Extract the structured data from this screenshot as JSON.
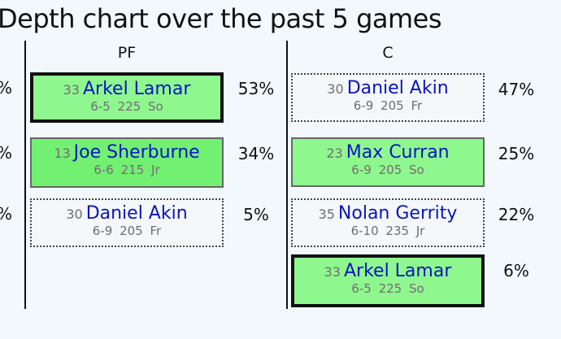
{
  "title": "Depth chart over the past 5 games",
  "left_partial_pcts": [
    "%",
    "%",
    "%"
  ],
  "columns": [
    {
      "position": "PF",
      "players": [
        {
          "number": "33",
          "name": "Arkel Lamar",
          "height": "6-5",
          "weight": "225",
          "class": "So",
          "pct": "53%",
          "style": "starter"
        },
        {
          "number": "13",
          "name": "Joe Sherburne",
          "height": "6-6",
          "weight": "215",
          "class": "Jr",
          "pct": "34%",
          "style": "green2"
        },
        {
          "number": "30",
          "name": "Daniel Akin",
          "height": "6-9",
          "weight": "205",
          "class": "Fr",
          "pct": "5%",
          "style": "dotted"
        }
      ]
    },
    {
      "position": "C",
      "players": [
        {
          "number": "30",
          "name": "Daniel Akin",
          "height": "6-9",
          "weight": "205",
          "class": "Fr",
          "pct": "47%",
          "style": "dotted"
        },
        {
          "number": "23",
          "name": "Max Curran",
          "height": "6-9",
          "weight": "205",
          "class": "So",
          "pct": "25%",
          "style": "green"
        },
        {
          "number": "35",
          "name": "Nolan Gerrity",
          "height": "6-10",
          "weight": "235",
          "class": "Jr",
          "pct": "22%",
          "style": "dotted"
        },
        {
          "number": "33",
          "name": "Arkel Lamar",
          "height": "6-5",
          "weight": "225",
          "class": "So",
          "pct": "6%",
          "style": "starter"
        }
      ]
    }
  ]
}
